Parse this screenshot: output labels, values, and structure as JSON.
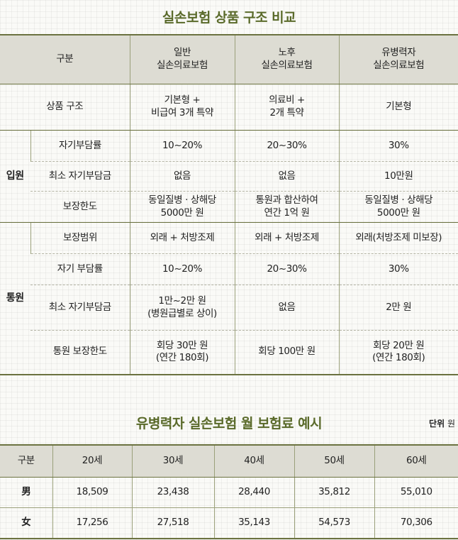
{
  "title1": "실손보험 상품 구조 비교",
  "compare": {
    "header": {
      "col0": "구분",
      "col1": "일반\n실손의료보험",
      "col2": "노후\n실손의료보험",
      "col3": "유병력자\n실손의료보험"
    },
    "product_structure": {
      "label": "상품 구조",
      "general": "기본형 +\n비급여 3개 특약",
      "senior": "의료비 +\n2개 특약",
      "preexisting": "기본형"
    },
    "inpatient": {
      "group": "입원",
      "rows": [
        {
          "label": "자기부담률",
          "general": "10~20%",
          "senior": "20~30%",
          "preexisting": "30%"
        },
        {
          "label": "최소 자기부담금",
          "general": "없음",
          "senior": "없음",
          "preexisting": "10만원"
        },
        {
          "label": "보장한도",
          "general": "동일질병 · 상해당\n5000만 원",
          "senior": "통원과 합산하여\n연간 1억 원",
          "preexisting": "동일질병 · 상해당\n5000만 원"
        }
      ]
    },
    "outpatient": {
      "group": "통원",
      "rows": [
        {
          "label": "보장범위",
          "general": "외래 + 처방조제",
          "senior": "외래 + 처방조제",
          "preexisting": "외래(처방조제 미보장)"
        },
        {
          "label": "자기 부담률",
          "general": "10~20%",
          "senior": "20~30%",
          "preexisting": "30%"
        },
        {
          "label": "최소 자기부담금",
          "general": "1만~2만 원\n(병원급별로 상이)",
          "senior": "없음",
          "preexisting": "2만 원"
        },
        {
          "label": "통원 보장한도",
          "general": "회당 30만 원\n(연간 180회)",
          "senior": "회당 100만 원",
          "preexisting": "회당 20만 원\n(연간 180회)"
        }
      ]
    }
  },
  "title2": "유병력자 실손보험 월 보험료 예시",
  "unit_label": "단위",
  "unit_value": "원",
  "premium": {
    "header": [
      "구분",
      "20세",
      "30세",
      "40세",
      "50세",
      "60세"
    ],
    "rows": [
      {
        "gender": "男",
        "values": [
          "18,509",
          "23,438",
          "28,440",
          "35,812",
          "55,010"
        ]
      },
      {
        "gender": "女",
        "values": [
          "17,256",
          "27,518",
          "35,143",
          "54,573",
          "70,306"
        ]
      }
    ]
  }
}
